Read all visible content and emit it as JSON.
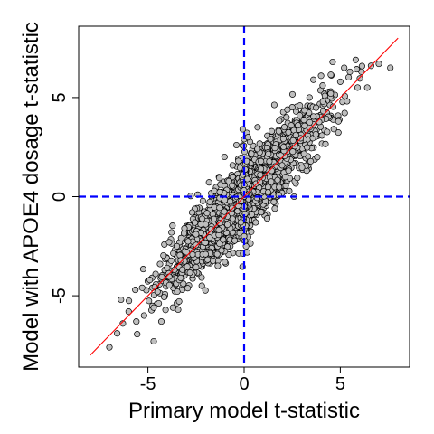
{
  "chart_data": {
    "type": "scatter",
    "title": "",
    "xlabel": "Primary model t-statistic",
    "ylabel": "Model with APOE4 dosage t-statistic",
    "xlim": [
      -8.6,
      8.6
    ],
    "ylim": [
      -8.6,
      8.6
    ],
    "x_ticks": [
      -5,
      0,
      5
    ],
    "y_ticks": [
      -5,
      0,
      5
    ],
    "x_tick_labels": [
      "-5",
      "0",
      "5"
    ],
    "y_tick_labels": [
      "-5",
      "0",
      "5"
    ],
    "grid": false,
    "legend": "none",
    "reference_lines": [
      {
        "kind": "vertical",
        "x": 0,
        "style": "dashed",
        "color": "#0000ff"
      },
      {
        "kind": "horizontal",
        "y": 0,
        "style": "dashed",
        "color": "#0000ff"
      },
      {
        "kind": "fit",
        "x": [
          -8,
          8
        ],
        "y": [
          -8,
          8
        ],
        "style": "solid",
        "color": "#ff0000"
      }
    ],
    "marker": {
      "fill": "#bebebe",
      "edge": "#000000",
      "shape": "circle"
    },
    "cloud": {
      "slope": 1.0,
      "spread_sd": 0.8,
      "approx_point_count": 2600
    },
    "outlying_points": [
      [
        -7.0,
        -7.6
      ],
      [
        -6.6,
        -6.9
      ],
      [
        -6.3,
        -6.4
      ],
      [
        -6.0,
        -5.8
      ],
      [
        -5.6,
        -6.3
      ],
      [
        -6.4,
        -5.2
      ],
      [
        -4.7,
        -7.3
      ],
      [
        -5.3,
        -4.6
      ],
      [
        -5.2,
        -6.0
      ],
      [
        -4.7,
        -5.6
      ],
      [
        -4.5,
        -4.8
      ],
      [
        -4.9,
        -4.2
      ],
      [
        -4.3,
        -6.3
      ],
      [
        -3.7,
        -5.6
      ],
      [
        -4.0,
        -3.6
      ],
      [
        -4.6,
        -3.9
      ],
      [
        -3.5,
        -2.5
      ],
      [
        -3.9,
        -2.3
      ],
      [
        -3.1,
        -1.6
      ],
      [
        -2.2,
        -4.5
      ],
      [
        -2.7,
        -0.8
      ],
      [
        -2.0,
        -2.9
      ],
      [
        -1.4,
        -2.9
      ],
      [
        -0.4,
        2.6
      ],
      [
        -0.3,
        1.8
      ],
      [
        -0.6,
        1.0
      ],
      [
        0.0,
        2.9
      ],
      [
        0.2,
        3.0
      ],
      [
        0.0,
        -2.0
      ],
      [
        0.1,
        -2.5
      ],
      [
        0.6,
        -1.3
      ],
      [
        0.7,
        3.5
      ],
      [
        1.2,
        -1.1
      ],
      [
        1.6,
        -0.6
      ],
      [
        2.2,
        4.0
      ],
      [
        2.6,
        0.0
      ],
      [
        2.9,
        4.6
      ],
      [
        3.4,
        5.0
      ],
      [
        3.8,
        2.0
      ],
      [
        4.1,
        4.8
      ],
      [
        4.5,
        5.2
      ],
      [
        4.0,
        6.1
      ],
      [
        4.6,
        6.8
      ],
      [
        5.2,
        6.5
      ],
      [
        5.5,
        6.3
      ],
      [
        5.8,
        6.9
      ],
      [
        6.1,
        6.3
      ],
      [
        6.4,
        5.5
      ],
      [
        7.0,
        6.7
      ],
      [
        7.6,
        6.5
      ],
      [
        4.9,
        3.8
      ],
      [
        5.9,
        5.5
      ],
      [
        3.6,
        5.9
      ],
      [
        6.6,
        6.6
      ],
      [
        5.0,
        5.8
      ],
      [
        2.8,
        3.6
      ],
      [
        1.8,
        3.3
      ],
      [
        -1.0,
        -3.3
      ],
      [
        -3.3,
        -4.1
      ],
      [
        -2.5,
        -1.9
      ]
    ]
  }
}
